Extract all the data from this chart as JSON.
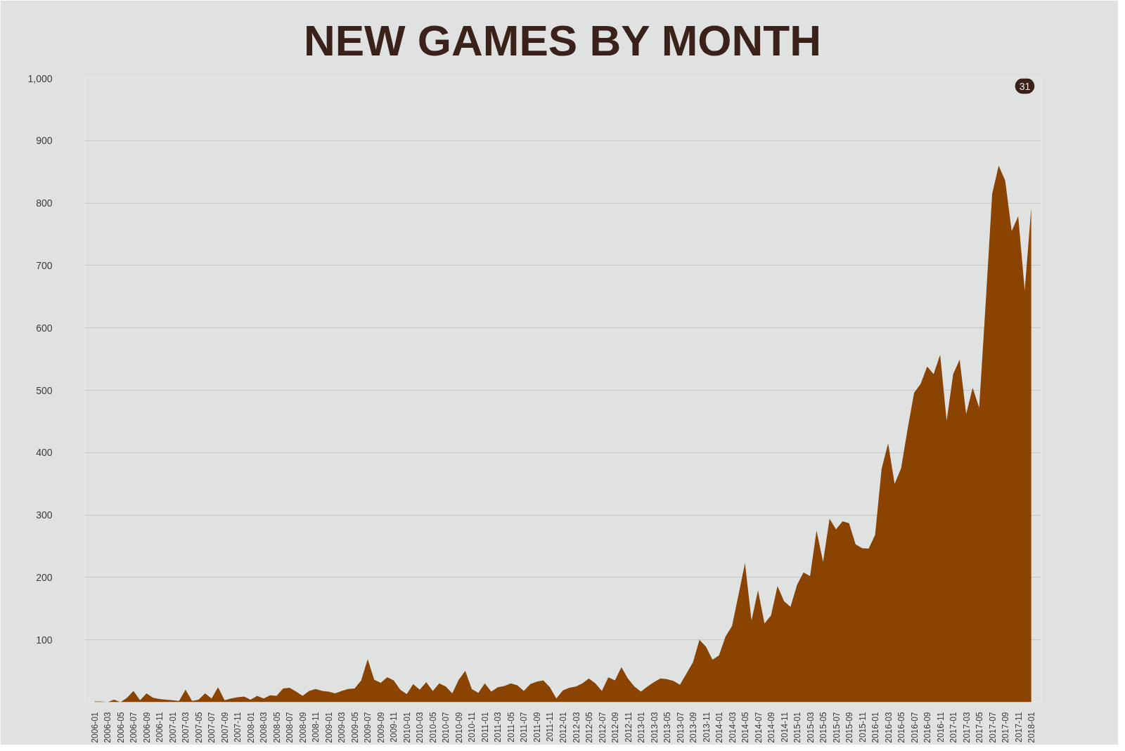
{
  "chart_data": {
    "type": "area",
    "title": "NEW GAMES BY MONTH",
    "annotations": [
      "31"
    ],
    "categories": [
      "2006-01",
      null,
      "2006-03",
      null,
      "2006-05",
      null,
      "2006-07",
      null,
      "2006-09",
      null,
      "2006-11",
      null,
      "2007-01",
      null,
      "2007-03",
      null,
      "2007-05",
      null,
      "2007-07",
      null,
      "2007-09",
      null,
      "2007-11",
      null,
      "2008-01",
      null,
      "2008-03",
      null,
      "2008-05",
      null,
      "2008-07",
      null,
      "2008-09",
      null,
      "2008-11",
      null,
      "2009-01",
      null,
      "2009-03",
      null,
      "2009-05",
      null,
      "2009-07",
      null,
      "2009-09",
      null,
      "2009-11",
      null,
      "2010-01",
      null,
      "2010-03",
      null,
      "2010-05",
      null,
      "2010-07",
      null,
      "2010-09",
      null,
      "2010-11",
      null,
      "2011-01",
      null,
      "2011-03",
      null,
      "2011-05",
      null,
      "2011-07",
      null,
      "2011-09",
      null,
      "2011-11",
      null,
      "2012-01",
      null,
      "2012-03",
      null,
      "2012-05",
      null,
      "2012-07",
      null,
      "2012-09",
      null,
      "2012-11",
      null,
      "2013-01",
      null,
      "2013-03",
      null,
      "2013-05",
      null,
      "2013-07",
      null,
      "2013-09",
      null,
      "2013-11",
      null,
      "2014-01",
      null,
      "2014-03",
      null,
      "2014-05",
      null,
      "2014-07",
      null,
      "2014-09",
      null,
      "2014-11",
      null,
      "2015-01",
      null,
      "2015-03",
      null,
      "2015-05",
      null,
      "2015-07",
      null,
      "2015-09",
      null,
      "2015-11",
      null,
      "2016-01",
      null,
      "2016-03",
      null,
      "2016-05",
      null,
      "2016-07",
      null,
      "2016-09",
      null,
      "2016-11",
      null,
      "2017-01",
      null,
      "2017-03",
      null,
      "2017-05",
      null,
      "2017-07",
      null,
      "2017-09",
      null,
      "2017-11",
      null,
      "2018-01"
    ],
    "values": [
      1,
      1,
      0,
      4,
      0,
      7,
      18,
      3,
      14,
      7,
      5,
      4,
      3,
      2,
      20,
      2,
      4,
      14,
      6,
      24,
      3,
      6,
      8,
      9,
      4,
      10,
      6,
      11,
      10,
      22,
      23,
      17,
      10,
      18,
      21,
      18,
      17,
      14,
      18,
      21,
      22,
      35,
      69,
      36,
      31,
      40,
      35,
      20,
      13,
      29,
      20,
      32,
      18,
      30,
      25,
      14,
      36,
      50,
      21,
      15,
      30,
      17,
      24,
      26,
      30,
      27,
      18,
      29,
      33,
      35,
      24,
      6,
      19,
      23,
      25,
      30,
      38,
      30,
      18,
      40,
      35,
      56,
      38,
      25,
      17,
      25,
      32,
      38,
      37,
      34,
      28,
      46,
      64,
      100,
      89,
      68,
      75,
      105,
      122,
      172,
      223,
      131,
      179,
      126,
      139,
      186,
      162,
      153,
      188,
      208,
      202,
      275,
      225,
      294,
      277,
      290,
      287,
      253,
      247,
      246,
      268,
      374,
      415,
      350,
      375,
      438,
      496,
      510,
      538,
      526,
      557,
      451,
      526,
      549,
      462,
      504,
      472,
      640,
      815,
      860,
      836,
      755,
      779,
      660,
      792
    ],
    "color": "#8a4300",
    "ylim": [
      0,
      1000
    ],
    "yticks": [
      100,
      200,
      300,
      400,
      500,
      600,
      700,
      800,
      900,
      {
        "value": 1000,
        "label": "1,000"
      }
    ],
    "grid": "y"
  }
}
